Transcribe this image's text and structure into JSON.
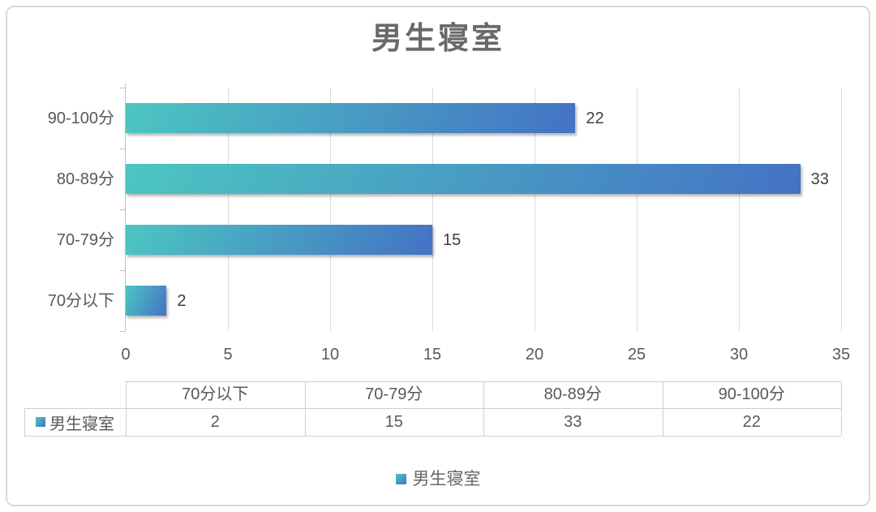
{
  "title": "男生寝室",
  "chart_data": {
    "type": "bar",
    "orientation": "horizontal",
    "title": "男生寝室",
    "series_name": "男生寝室",
    "categories": [
      "70分以下",
      "70-79分",
      "80-89分",
      "90-100分"
    ],
    "values": [
      2,
      15,
      33,
      22
    ],
    "category_order_top_to_bottom": [
      "90-100分",
      "80-89分",
      "70-79分",
      "70分以下"
    ],
    "xlim": [
      0,
      35
    ],
    "x_ticks": [
      0,
      5,
      10,
      15,
      20,
      25,
      30,
      35
    ],
    "data_labels_shown": true,
    "gridlines": "vertical-major",
    "legend_position": "bottom",
    "data_table": {
      "corner_cell": "",
      "row_label": "男生寝室",
      "columns": [
        "70分以下",
        "70-79分",
        "80-89分",
        "90-100分"
      ],
      "values": [
        "2",
        "15",
        "33",
        "22"
      ]
    }
  },
  "legend": {
    "label": "男生寝室"
  },
  "colors": {
    "bar_gradient_start": "#4CC6C2",
    "bar_gradient_end": "#4472C4",
    "gridline": "#D9D9D9",
    "axis_line": "#C0C0C0",
    "label_text": "#595959",
    "value_text": "#3F3F3F",
    "title_text": "#696969",
    "table_border": "#CFCFCF",
    "frame_border": "#D9D9D9"
  }
}
